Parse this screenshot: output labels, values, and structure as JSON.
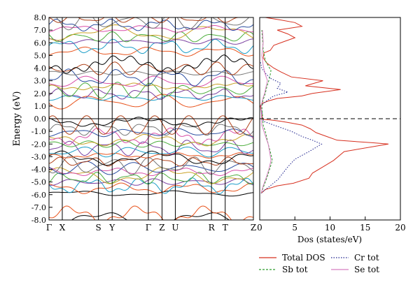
{
  "chart_data": [
    {
      "type": "line",
      "ylabel": "Energy (eV)",
      "xlabel": "",
      "ylim": [
        -8.0,
        8.0
      ],
      "yticks": [
        "8.0",
        "7.0",
        "6.0",
        "5.0",
        "4.0",
        "3.0",
        "2.0",
        "1.0",
        "0.0",
        "-1.0",
        "-2.0",
        "-3.0",
        "-4.0",
        "-5.0",
        "-6.0",
        "-7.0",
        "-8.0"
      ],
      "high_symmetry_points": [
        {
          "label": "Γ",
          "k": 0.0
        },
        {
          "label": "X",
          "k": 0.065
        },
        {
          "label": "S",
          "k": 0.242
        },
        {
          "label": "Y",
          "k": 0.309
        },
        {
          "label": "Γ",
          "k": 0.486
        },
        {
          "label": "Z",
          "k": 0.553
        },
        {
          "label": "U",
          "k": 0.618
        },
        {
          "label": "R",
          "k": 0.795
        },
        {
          "label": "T",
          "k": 0.862
        },
        {
          "label": "Z",
          "k": 1.0
        }
      ],
      "fermi_level": 0.0,
      "grid": false,
      "bands": {
        "colors": [
          "#000000",
          "#e8531c",
          "#1c9ec8",
          "#7a3fa0",
          "#4cae3c",
          "#c9a227",
          "#d94fa8",
          "#2b4ea0",
          "#777777",
          "#b0421a"
        ],
        "energies": [
          -5.9,
          -5.5,
          -5.3,
          -5.0,
          -4.7,
          -4.5,
          -4.2,
          -3.9,
          -3.7,
          -3.4,
          -3.1,
          -2.9,
          -2.6,
          -2.3,
          -2.0,
          -1.7,
          -1.4,
          -1.1,
          -0.8,
          -0.5,
          -0.25,
          1.35,
          1.65,
          1.95,
          2.25,
          2.55,
          2.9,
          3.25,
          3.6,
          3.95,
          4.3,
          5.3,
          5.7,
          6.1,
          6.45,
          6.8,
          7.1,
          7.4,
          7.7,
          7.9,
          -7.9,
          -7.6
        ]
      }
    },
    {
      "type": "line",
      "xlabel": "Dos (states/eV)",
      "ylabel": "",
      "xlim": [
        0,
        20
      ],
      "ylim": [
        -8.0,
        8.0
      ],
      "xticks": [
        "0",
        "5",
        "10",
        "15",
        "20"
      ],
      "legend_position": "bottom",
      "series": [
        {
          "name": "Total DOS",
          "color": "#d7301f",
          "style": "solid",
          "x": [
            0.2,
            0.8,
            2.5,
            4.8,
            7.0,
            7.5,
            9.0,
            10.5,
            12.0,
            18.3,
            16.0,
            11.0,
            9.5,
            8.0,
            7.2,
            6.0,
            4.5,
            3.0,
            1.5,
            0.4,
            0.1,
            0.3,
            1.2,
            2.5,
            6.0,
            7.5,
            11.5,
            6.5,
            9.0,
            4.5,
            3.0,
            2.0,
            1.0,
            0.5,
            0.6,
            1.5,
            2.0,
            3.5,
            5.0,
            4.0,
            2.5,
            6.0,
            5.0,
            3.0,
            0.8
          ],
          "y": [
            -5.9,
            -5.6,
            -5.3,
            -5.1,
            -4.7,
            -4.3,
            -3.8,
            -3.3,
            -2.6,
            -2.0,
            -1.9,
            -1.7,
            -1.4,
            -1.1,
            -0.8,
            -0.5,
            -0.35,
            -0.2,
            -0.1,
            -0.05,
            1.0,
            1.2,
            1.4,
            1.6,
            1.8,
            2.0,
            2.3,
            2.6,
            3.0,
            3.3,
            3.7,
            4.0,
            4.4,
            4.8,
            5.2,
            5.4,
            5.8,
            6.1,
            6.4,
            6.7,
            7.0,
            7.3,
            7.6,
            7.8,
            8.0
          ]
        },
        {
          "name": "Cr tot",
          "color": "#1a1f8c",
          "style": "dotted",
          "x": [
            0.2,
            0.8,
            1.5,
            2.6,
            3.3,
            4.0,
            5.0,
            7.0,
            8.8,
            7.5,
            6.0,
            4.5,
            3.5,
            2.5,
            1.5,
            0.5,
            0.2,
            0.5,
            1.2,
            2.0,
            4.0,
            2.5,
            3.0,
            1.5,
            0.8,
            0.3,
            0.1
          ],
          "y": [
            -5.9,
            -5.6,
            -5.3,
            -4.8,
            -4.3,
            -3.8,
            -3.2,
            -2.6,
            -2.0,
            -1.7,
            -1.4,
            -1.0,
            -0.8,
            -0.6,
            -0.4,
            -0.2,
            1.0,
            1.2,
            1.5,
            1.8,
            2.1,
            2.4,
            2.8,
            3.2,
            3.6,
            4.0,
            4.5
          ]
        },
        {
          "name": "Sb tot",
          "color": "#2e9e2e",
          "style": "dashed",
          "x": [
            0.2,
            0.6,
            1.0,
            1.4,
            1.8,
            1.5,
            1.2,
            1.0,
            0.8,
            0.5,
            0.3,
            0.5,
            0.8,
            1.0,
            1.4,
            1.6,
            1.2,
            0.8,
            0.5,
            0.3
          ],
          "y": [
            -5.9,
            -5.3,
            -4.7,
            -4.0,
            -3.3,
            -2.6,
            -2.0,
            -1.5,
            -1.0,
            -0.5,
            1.0,
            1.5,
            2.0,
            2.5,
            3.2,
            3.8,
            4.2,
            4.6,
            5.5,
            7.0
          ]
        },
        {
          "name": "Se tot",
          "color": "#d77fc0",
          "style": "solid",
          "x": [
            0.2,
            0.5,
            0.9,
            1.3,
            1.6,
            1.4,
            1.2,
            0.9,
            0.6,
            0.3,
            0.2,
            0.4,
            0.7,
            0.9,
            1.1,
            0.8,
            0.5,
            0.3,
            0.5,
            0.4
          ],
          "y": [
            -5.9,
            -5.3,
            -4.7,
            -4.0,
            -3.3,
            -2.6,
            -2.0,
            -1.5,
            -1.0,
            -0.5,
            1.0,
            1.5,
            2.0,
            2.5,
            3.0,
            3.5,
            4.2,
            5.0,
            6.0,
            7.0
          ]
        }
      ]
    }
  ]
}
